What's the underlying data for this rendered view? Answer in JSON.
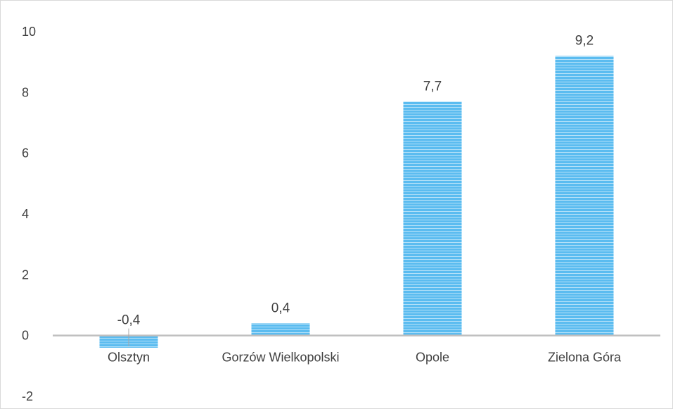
{
  "chart_data": {
    "type": "bar",
    "categories": [
      "Olsztyn",
      "Gorzów Wielkopolski",
      "Opole",
      "Zielona Góra"
    ],
    "values": [
      -0.4,
      0.4,
      7.7,
      9.2
    ],
    "data_labels": [
      "-0,4",
      "0,4",
      "7,7",
      "9,2"
    ],
    "title": "",
    "xlabel": "",
    "ylabel": "",
    "ylim": [
      -2,
      10
    ],
    "yticks": [
      10,
      8,
      6,
      4,
      2,
      0,
      -2
    ],
    "ytick_labels": [
      "10",
      "8",
      "6",
      "4",
      "2",
      "0",
      "-2"
    ],
    "grid": false,
    "legend": "none",
    "bar_color": "#5bbcf0",
    "bar_stripe_color": "#ffffff",
    "axis_color": "#bfbfbf"
  }
}
